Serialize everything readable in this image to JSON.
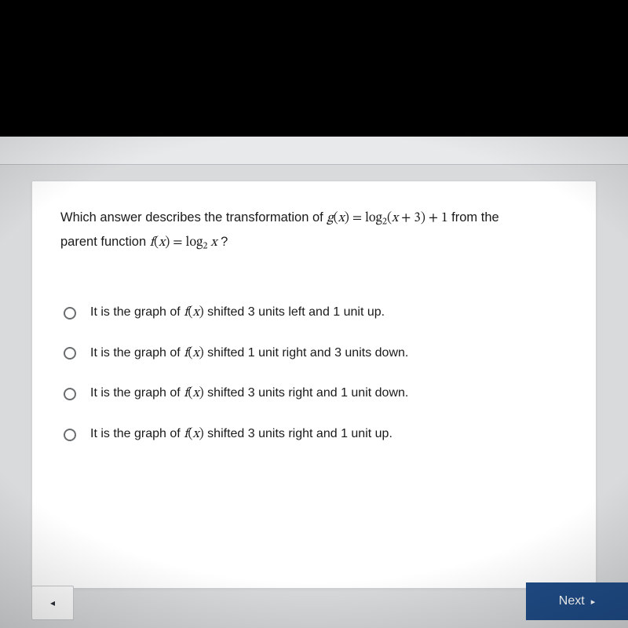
{
  "question": {
    "line1_pre": "Which answer describes the transformation of ",
    "gx_func": "g",
    "gx_open": "(",
    "gx_var": "x",
    "gx_close": ")",
    "eq": " = ",
    "log": "log",
    "base2": "2",
    "arg_open": "(",
    "arg_var": "x",
    "arg_plus": " + 3",
    "arg_close": ")",
    "plus1": " + 1",
    "line1_post": " from the",
    "line2_pre": "parent function ",
    "fx_func": "f",
    "fx_open": "(",
    "fx_var": "x",
    "fx_close": ")",
    "eq2": " = ",
    "log2": "log",
    "base2b": "2",
    "arg2_var": " x",
    "qmark": " ?"
  },
  "options": [
    {
      "pre": "It is the graph of ",
      "fx": "f(x)",
      "post": " shifted 3 units left and 1 unit up."
    },
    {
      "pre": "It is the graph of ",
      "fx": "f(x)",
      "post": " shifted 1 unit right and 3 units down."
    },
    {
      "pre": "It is the graph of ",
      "fx": "f(x)",
      "post": " shifted 3 units right and 1 unit down."
    },
    {
      "pre": "It is the graph of ",
      "fx": "f(x)",
      "post": " shifted 3 units right and 1 unit up."
    }
  ],
  "nav": {
    "prev_glyph": "◂",
    "next_label": "Next",
    "next_glyph": "▸"
  },
  "colors": {
    "page_bg": "#000000",
    "panel_bg": "#ffffff",
    "viewport_bg": "#d8dadc",
    "next_bg": "#1f4c87",
    "next_fg": "#ffffff",
    "radio_border": "#6a6d70",
    "text": "#1a1a1a"
  }
}
